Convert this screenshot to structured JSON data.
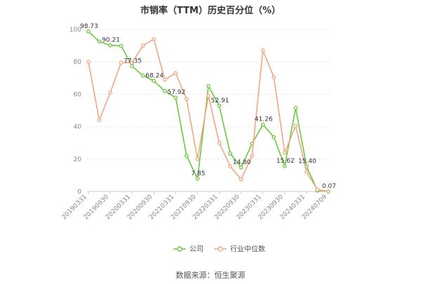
{
  "chart_data": {
    "type": "line",
    "title": "市销率（TTM）历史百分位（%）",
    "source": "数据来源：恒生聚源",
    "xlabel": "",
    "ylabel": "",
    "ylim": [
      0,
      100
    ],
    "yticks": [
      0,
      20,
      40,
      60,
      80,
      100
    ],
    "grid": true,
    "legend_position": "bottom",
    "x": [
      "20190331",
      "20190630",
      "20190930",
      "20191231",
      "20200331",
      "20200630",
      "20200930",
      "20201231",
      "20210331",
      "20210630",
      "20210930",
      "20211231",
      "20220331",
      "20220630",
      "20220930",
      "20221231",
      "20230331",
      "20230630",
      "20230930",
      "20231231",
      "20240331",
      "20240630",
      "20240709"
    ],
    "x_tick_labels": [
      "20190331",
      "20190930",
      "20200331",
      "20200930",
      "20210331",
      "20210930",
      "20220331",
      "20220930",
      "20230331",
      "20230930",
      "20240331",
      "20240709"
    ],
    "series": [
      {
        "name": "公司",
        "color": "#6cc93d",
        "values": [
          98.73,
          92.5,
          90.21,
          89.9,
          77.35,
          71.5,
          68.24,
          62.0,
          57.92,
          22.0,
          7.85,
          65.0,
          52.91,
          23.5,
          14.8,
          29.5,
          41.26,
          33.5,
          15.62,
          51.5,
          15.4,
          0.5,
          0.07
        ]
      },
      {
        "name": "行业中位数",
        "color": "#f4a582",
        "values": [
          80.0,
          44.0,
          61.0,
          79.5,
          79.5,
          90.0,
          94.0,
          69.0,
          73.0,
          57.0,
          20.0,
          59.0,
          30.0,
          15.5,
          7.5,
          22.0,
          87.0,
          70.5,
          24.0,
          40.5,
          12.0,
          1.0,
          0.07
        ]
      }
    ],
    "data_labels": [
      {
        "series": 0,
        "index": 0,
        "text": "98.73"
      },
      {
        "series": 0,
        "index": 2,
        "text": "90.21"
      },
      {
        "series": 0,
        "index": 4,
        "text": "77.35"
      },
      {
        "series": 0,
        "index": 6,
        "text": "68.24"
      },
      {
        "series": 0,
        "index": 8,
        "text": "57.92"
      },
      {
        "series": 0,
        "index": 10,
        "text": "7.85"
      },
      {
        "series": 0,
        "index": 12,
        "text": "52.91"
      },
      {
        "series": 0,
        "index": 14,
        "text": "14.80"
      },
      {
        "series": 0,
        "index": 16,
        "text": "41.26"
      },
      {
        "series": 0,
        "index": 18,
        "text": "15.62"
      },
      {
        "series": 0,
        "index": 20,
        "text": "15.40"
      },
      {
        "series": 0,
        "index": 22,
        "text": "0.07"
      }
    ]
  }
}
